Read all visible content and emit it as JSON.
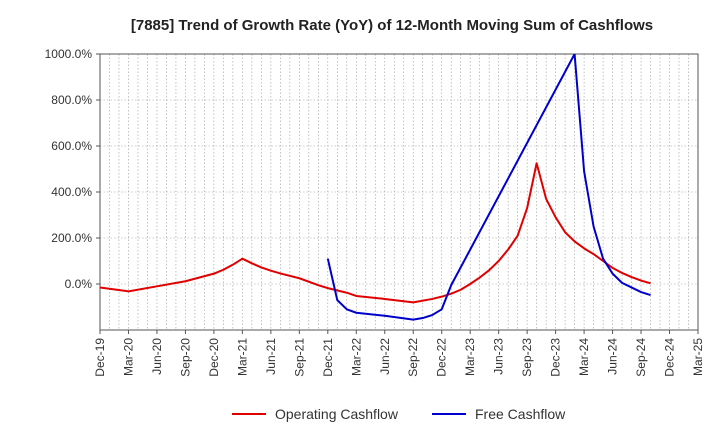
{
  "chart_data": {
    "type": "line",
    "title": "[7885]  Trend of Growth Rate (YoY) of 12-Month Moving Sum of Cashflows",
    "xlabel": "",
    "ylabel": "",
    "ylim": [
      -200,
      1000
    ],
    "y_ticks": [
      0,
      200,
      400,
      600,
      800,
      1000
    ],
    "y_tick_labels": [
      "0.0%",
      "200.0%",
      "400.0%",
      "600.0%",
      "800.0%",
      "1000.0%"
    ],
    "x_tick_labels": [
      "Dec-19",
      "Mar-20",
      "Jun-20",
      "Sep-20",
      "Dec-20",
      "Mar-21",
      "Jun-21",
      "Sep-21",
      "Dec-21",
      "Mar-22",
      "Jun-22",
      "Sep-22",
      "Dec-22",
      "Mar-23",
      "Jun-23",
      "Sep-23",
      "Dec-23",
      "Mar-24",
      "Jun-24",
      "Sep-24",
      "Dec-24",
      "Mar-25"
    ],
    "grid": true,
    "legend_position": "bottom",
    "series": [
      {
        "name": "Operating Cashflow",
        "color": "#e00000",
        "points": [
          [
            "Dec-19",
            -15
          ],
          [
            "Mar-20",
            -32
          ],
          [
            "Jun-20",
            -10
          ],
          [
            "Sep-20",
            12
          ],
          [
            "Dec-20",
            45
          ],
          [
            "Jan-21",
            62
          ],
          [
            "Feb-21",
            84
          ],
          [
            "Mar-21",
            110
          ],
          [
            "Apr-21",
            90
          ],
          [
            "May-21",
            72
          ],
          [
            "Jun-21",
            58
          ],
          [
            "Jul-21",
            46
          ],
          [
            "Sep-21",
            25
          ],
          [
            "Nov-21",
            -5
          ],
          [
            "Dec-21",
            -18
          ],
          [
            "Feb-22",
            -38
          ],
          [
            "Mar-22",
            -52
          ],
          [
            "Jun-22",
            -65
          ],
          [
            "Sep-22",
            -80
          ],
          [
            "Nov-22",
            -65
          ],
          [
            "Dec-22",
            -55
          ],
          [
            "Jan-23",
            -42
          ],
          [
            "Feb-23",
            -25
          ],
          [
            "Mar-23",
            0
          ],
          [
            "Apr-23",
            28
          ],
          [
            "May-23",
            60
          ],
          [
            "Jun-23",
            100
          ],
          [
            "Jul-23",
            150
          ],
          [
            "Aug-23",
            210
          ],
          [
            "Sep-23",
            330
          ],
          [
            "Oct-23",
            525
          ],
          [
            "Nov-23",
            370
          ],
          [
            "Dec-23",
            290
          ],
          [
            "Jan-24",
            225
          ],
          [
            "Feb-24",
            185
          ],
          [
            "Mar-24",
            155
          ],
          [
            "Apr-24",
            130
          ],
          [
            "May-24",
            100
          ],
          [
            "Jun-24",
            70
          ],
          [
            "Jul-24",
            48
          ],
          [
            "Aug-24",
            30
          ],
          [
            "Sep-24",
            15
          ],
          [
            "Oct-24",
            3
          ]
        ]
      },
      {
        "name": "Free Cashflow",
        "color": "#0000cc",
        "points": [
          [
            "Dec-21",
            110
          ],
          [
            "Jan-22",
            -70
          ],
          [
            "Feb-22",
            -110
          ],
          [
            "Mar-22",
            -125
          ],
          [
            "Jun-22",
            -138
          ],
          [
            "Sep-22",
            -155
          ],
          [
            "Oct-22",
            -148
          ],
          [
            "Nov-22",
            -135
          ],
          [
            "Dec-22",
            -110
          ],
          [
            "Jan-23",
            -5
          ],
          [
            "Feb-24",
            1000
          ],
          [
            "Mar-24",
            490
          ],
          [
            "Apr-24",
            250
          ],
          [
            "May-24",
            110
          ],
          [
            "Jun-24",
            45
          ],
          [
            "Jul-24",
            5
          ],
          [
            "Aug-24",
            -15
          ],
          [
            "Sep-24",
            -35
          ],
          [
            "Oct-24",
            -48
          ]
        ]
      }
    ]
  }
}
